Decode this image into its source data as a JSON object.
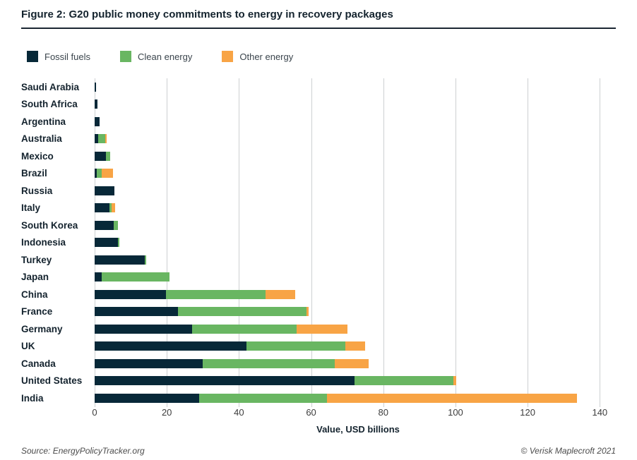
{
  "header": {
    "title": "Figure 2: G20 public money commitments to energy in recovery packages"
  },
  "legend": {
    "items": [
      {
        "label": "Fossil fuels",
        "color": "#072838"
      },
      {
        "label": "Clean energy",
        "color": "#69b662"
      },
      {
        "label": "Other energy",
        "color": "#f8a445"
      }
    ]
  },
  "chart_data": {
    "type": "bar",
    "orientation": "horizontal",
    "stacked": true,
    "title": "Figure 2: G20 public money commitments to energy in recovery packages",
    "categories": [
      "Saudi Arabia",
      "South Africa",
      "Argentina",
      "Australia",
      "Mexico",
      "Brazil",
      "Russia",
      "Italy",
      "South Korea",
      "Indonesia",
      "Turkey",
      "Japan",
      "China",
      "France",
      "Germany",
      "UK",
      "Canada",
      "United States",
      "India"
    ],
    "series": [
      {
        "name": "Fossil fuels",
        "color": "#072838",
        "values": [
          0.4,
          0.7,
          1.4,
          0.9,
          3.2,
          0.6,
          5.4,
          4.2,
          5.2,
          6.5,
          13.9,
          2.0,
          19.7,
          23.0,
          27.0,
          42.0,
          30.0,
          72.0,
          29.0
        ]
      },
      {
        "name": "Clean energy",
        "color": "#69b662",
        "values": [
          0,
          0,
          0,
          2.1,
          1.2,
          1.4,
          0,
          0.5,
          1.3,
          0.3,
          0.4,
          18.8,
          27.7,
          35.7,
          29.0,
          27.5,
          36.5,
          27.5,
          35.4
        ]
      },
      {
        "name": "Other energy",
        "color": "#f8a445",
        "values": [
          0,
          0,
          0,
          0.4,
          0,
          3.1,
          0,
          1.0,
          0,
          0,
          0,
          0,
          8.1,
          0.6,
          14.0,
          5.5,
          9.5,
          0.7,
          69.3
        ]
      }
    ],
    "xlabel": "Value, USD billions",
    "xticks": [
      0,
      20,
      40,
      60,
      80,
      100,
      120,
      140
    ],
    "xlim": [
      0,
      146
    ],
    "grid": "vertical",
    "gridline_color": "#cdd0d2",
    "legend_position": "top"
  },
  "footer": {
    "source": "Source: EnergyPolicyTracker.org",
    "copyright": "© Verisk Maplecroft 2021"
  }
}
